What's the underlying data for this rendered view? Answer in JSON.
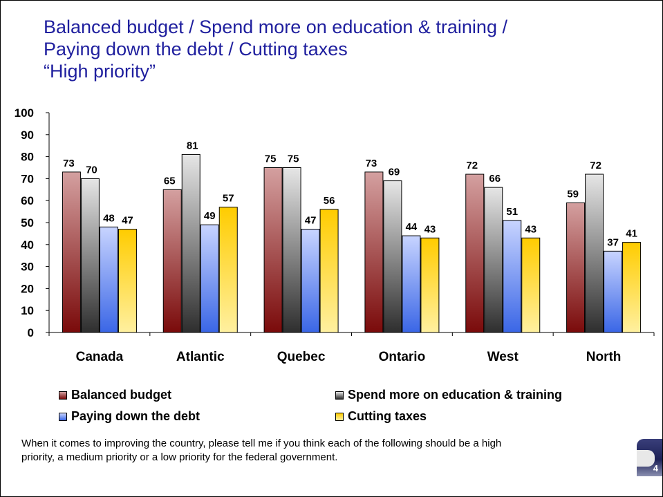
{
  "title_lines": [
    "Balanced budget / Spend more on education & training /",
    "Paying down the debt / Cutting taxes",
    "“High priority”"
  ],
  "chart_data": {
    "type": "bar",
    "categories": [
      "Canada",
      "Atlantic",
      "Quebec",
      "Ontario",
      "West",
      "North"
    ],
    "series": [
      {
        "name": "Balanced budget",
        "values": [
          73,
          65,
          75,
          73,
          72,
          59
        ],
        "color_top": "#d4a0a0",
        "color_bottom": "#7a0a0a"
      },
      {
        "name": "Spend more on education & training",
        "values": [
          70,
          81,
          75,
          69,
          66,
          72
        ],
        "color_top": "#e6e6e6",
        "color_bottom": "#2e2e2e"
      },
      {
        "name": "Paying down the debt",
        "values": [
          48,
          49,
          47,
          44,
          51,
          37
        ],
        "color_top": "#c8d4ff",
        "color_bottom": "#3a66e6"
      },
      {
        "name": "Cutting taxes",
        "values": [
          47,
          57,
          56,
          43,
          43,
          41
        ],
        "color_top": "#ffcc00",
        "color_bottom": "#fff0a0"
      }
    ],
    "ylim": [
      0,
      100
    ],
    "yticks": [
      0,
      10,
      20,
      30,
      40,
      50,
      60,
      70,
      80,
      90,
      100
    ],
    "legend_position": "bottom",
    "grid": false
  },
  "footnote": "When it comes to improving the country, please tell me if you think each of the following should be a high priority, a medium priority or a low priority for the federal government.",
  "page_number": "4"
}
